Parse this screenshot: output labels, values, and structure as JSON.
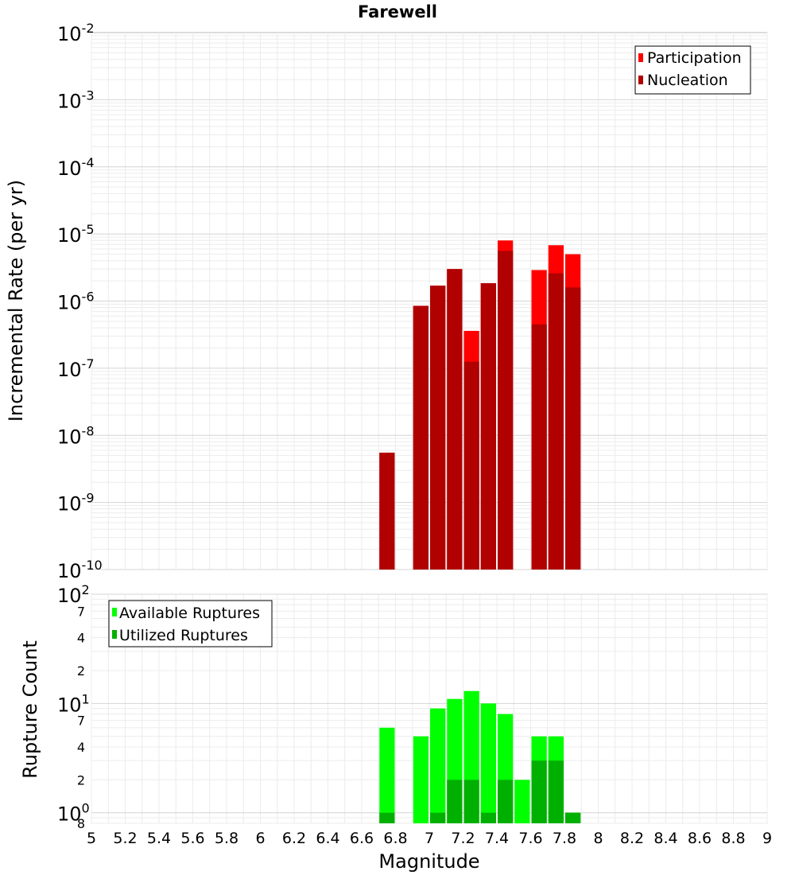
{
  "chart_data": [
    {
      "type": "bar",
      "title": "Farewell",
      "ylabel": "Incremental Rate (per yr)",
      "yscale": "log",
      "ylim": [
        1e-10,
        0.01
      ],
      "xlim": [
        5,
        9
      ],
      "y_tick_exponents": [
        "-10",
        "-9",
        "-8",
        "-7",
        "-6",
        "-5",
        "-4",
        "-3",
        "-2"
      ],
      "y_tick_base": "10",
      "legend": {
        "placement": "top-right",
        "entries": [
          "Participation",
          "Nucleation"
        ]
      },
      "colors": {
        "participation": "#ff0000",
        "nucleation": "#b00000"
      },
      "bin_width": 0.1,
      "x": [
        6.75,
        6.95,
        7.05,
        7.15,
        7.25,
        7.35,
        7.45,
        7.65,
        7.75,
        7.85
      ],
      "series": [
        {
          "name": "Participation",
          "values": [
            5.5e-09,
            8.5e-07,
            1.7e-06,
            3e-06,
            3.6e-07,
            1.85e-06,
            8e-06,
            2.9e-06,
            6.8e-06,
            5e-06
          ]
        },
        {
          "name": "Nucleation",
          "values": [
            5.5e-09,
            8.5e-07,
            1.7e-06,
            3e-06,
            1.25e-07,
            1.85e-06,
            5.6e-06,
            4.5e-07,
            2.6e-06,
            1.6e-06
          ]
        }
      ]
    },
    {
      "type": "bar",
      "ylabel": "Rupture Count",
      "xlabel": "Magnitude",
      "yscale": "log",
      "ylim": [
        0.8,
        100
      ],
      "xlim": [
        5,
        9
      ],
      "x_ticks": [
        "5",
        "5.2",
        "5.4",
        "5.6",
        "5.8",
        "6",
        "6.2",
        "6.4",
        "6.6",
        "6.8",
        "7",
        "7.2",
        "7.4",
        "7.6",
        "7.8",
        "8",
        "8.2",
        "8.4",
        "8.6",
        "8.8",
        "9"
      ],
      "y_major_ticks": [
        {
          "value": 1,
          "base": "10",
          "exp": "0"
        },
        {
          "value": 10,
          "base": "10",
          "exp": "1"
        },
        {
          "value": 100,
          "base": "10",
          "exp": "2"
        }
      ],
      "y_minor_ticks": [
        {
          "value": 0.8,
          "label": "8"
        },
        {
          "value": 2,
          "label": "2"
        },
        {
          "value": 4,
          "label": "4"
        },
        {
          "value": 7,
          "label": "7"
        },
        {
          "value": 20,
          "label": "2"
        },
        {
          "value": 40,
          "label": "4"
        },
        {
          "value": 70,
          "label": "7"
        }
      ],
      "legend": {
        "placement": "top-left",
        "entries": [
          "Available Ruptures",
          "Utilized Ruptures"
        ]
      },
      "colors": {
        "available": "#00ff00",
        "utilized": "#00b000"
      },
      "bin_width": 0.1,
      "x": [
        6.75,
        6.95,
        7.05,
        7.15,
        7.25,
        7.35,
        7.45,
        7.55,
        7.65,
        7.75,
        7.85
      ],
      "series": [
        {
          "name": "Available Ruptures",
          "values": [
            6,
            5,
            9,
            11,
            13,
            10,
            8,
            2,
            5,
            5,
            1
          ]
        },
        {
          "name": "Utilized Ruptures",
          "values": [
            1,
            0,
            1,
            2,
            2,
            1,
            2,
            0,
            3,
            3,
            1
          ]
        }
      ]
    }
  ]
}
